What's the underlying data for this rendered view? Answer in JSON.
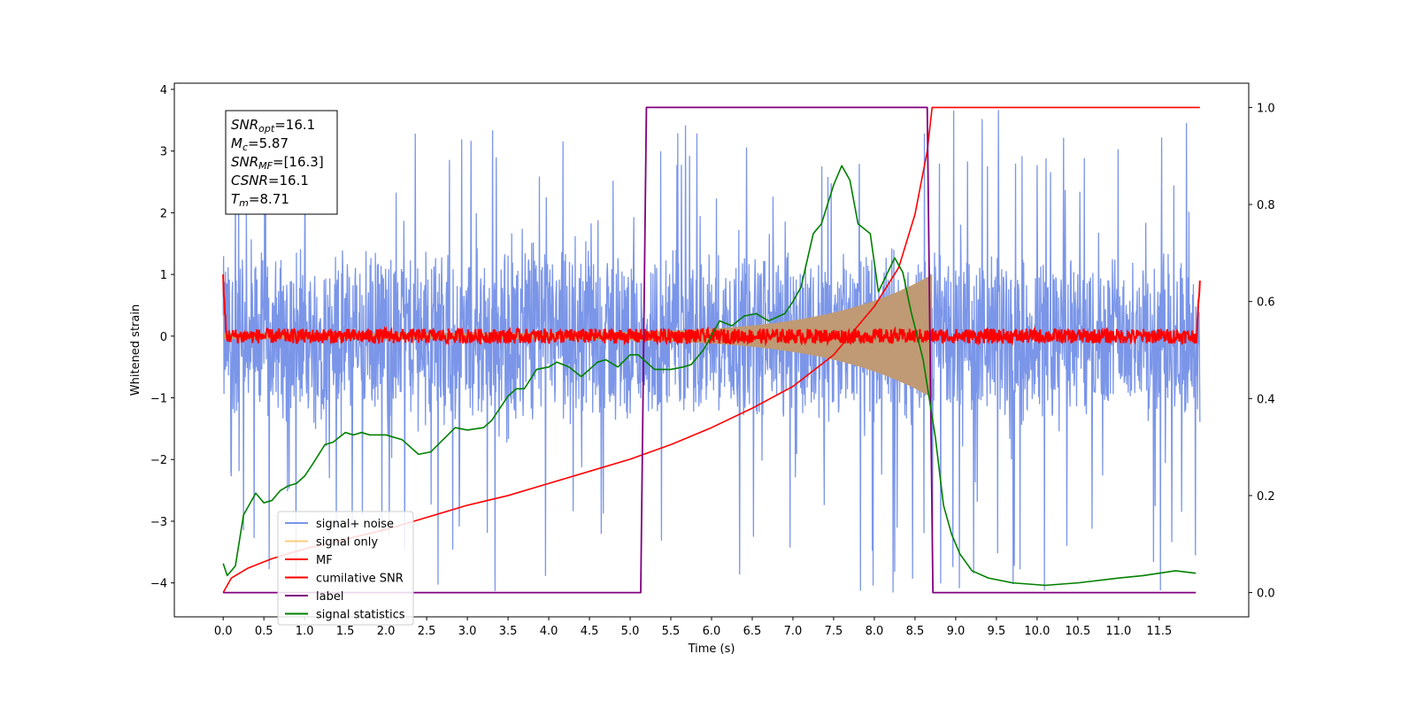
{
  "chart_data": {
    "type": "line",
    "title": "",
    "xlabel": "Time (s)",
    "ylabel": "Whitened strain",
    "ylabel_right": "",
    "xlim": [
      -0.6,
      12.6
    ],
    "ylim": [
      -4.55,
      4.1
    ],
    "ylim_right": [
      -0.05,
      1.05
    ],
    "xticks": [
      0.0,
      0.5,
      1.0,
      1.5,
      2.0,
      2.5,
      3.0,
      3.5,
      4.0,
      4.5,
      5.0,
      5.5,
      6.0,
      6.5,
      7.0,
      7.5,
      8.0,
      8.5,
      9.0,
      9.5,
      10.0,
      10.5,
      11.0,
      11.5
    ],
    "xtick_labels": [
      "0.0",
      "0.5",
      "1.0",
      "1.5",
      "2.0",
      "2.5",
      "3.0",
      "3.5",
      "4.0",
      "4.5",
      "5.0",
      "5.5",
      "6.0",
      "6.5",
      "7.0",
      "7.5",
      "8.0",
      "8.5",
      "9.0",
      "9.5",
      "10.0",
      "10.5",
      "11.0",
      "11.5"
    ],
    "yticks": [
      -4,
      -3,
      -2,
      -1,
      0,
      1,
      2,
      3,
      4
    ],
    "ytick_labels": [
      "−4",
      "−3",
      "−2",
      "−1",
      "0",
      "1",
      "2",
      "3",
      "4"
    ],
    "yticks_right": [
      0.0,
      0.2,
      0.4,
      0.6,
      0.8,
      1.0
    ],
    "ytick_labels_right": [
      "0.0",
      "0.2",
      "0.4",
      "0.6",
      "0.8",
      "1.0"
    ],
    "grid": false,
    "legend_position": "lower-left",
    "annotation": {
      "lines": [
        {
          "sym": "SNR",
          "sub": "opt",
          "value": "=16.1"
        },
        {
          "sym": "M",
          "sub": "c",
          "value": "=5.87"
        },
        {
          "sym": "SNR",
          "sub": "MF",
          "value": "=[16.3]"
        },
        {
          "sym": "CSNR",
          "sub": "",
          "value": "=16.1"
        },
        {
          "sym": "T",
          "sub": "m",
          "value": "=8.71"
        }
      ]
    },
    "series": [
      {
        "name": "signal+ noise",
        "color": "#7b96e8",
        "axis": "left",
        "style": "noise-band",
        "x_range": [
          0.0,
          12.0
        ],
        "band": [
          -1.5,
          1.5
        ],
        "spike_max": 3.7,
        "spike_min": -4.2
      },
      {
        "name": "signal only",
        "color": "#fecb7c",
        "fill_color": "#bf9a74",
        "axis": "left",
        "style": "chirp-envelope",
        "x_range": [
          0.0,
          8.71
        ],
        "amplitude_start": 0.05,
        "amplitude_end": 1.0
      },
      {
        "name": "MF",
        "color": "#ff0000",
        "axis": "left",
        "style": "noisy-flat",
        "x_range": [
          0.0,
          12.0
        ],
        "level": 0.0,
        "amplitude": 0.12,
        "edge_value": 1.0
      },
      {
        "name": "cumilative SNR",
        "color": "#ff0000",
        "axis": "right",
        "x": [
          0.0,
          0.1,
          0.3,
          0.6,
          1.0,
          1.5,
          2.0,
          2.5,
          3.0,
          3.5,
          4.0,
          4.5,
          5.0,
          5.5,
          6.0,
          6.5,
          7.0,
          7.5,
          8.0,
          8.3,
          8.5,
          8.65,
          8.71,
          12.0
        ],
        "y": [
          0.0,
          0.03,
          0.05,
          0.07,
          0.09,
          0.11,
          0.13,
          0.155,
          0.18,
          0.2,
          0.225,
          0.25,
          0.275,
          0.305,
          0.34,
          0.38,
          0.425,
          0.49,
          0.59,
          0.67,
          0.78,
          0.91,
          1.0,
          1.0
        ]
      },
      {
        "name": "label",
        "color": "#800080",
        "axis": "right",
        "x": [
          0.0,
          5.13,
          5.2,
          8.65,
          8.72,
          11.95
        ],
        "y": [
          0.0,
          0.0,
          1.0,
          1.0,
          0.0,
          0.0
        ]
      },
      {
        "name": "signal statistics",
        "color": "#008000",
        "axis": "right",
        "x": [
          0.0,
          0.05,
          0.15,
          0.25,
          0.4,
          0.5,
          0.6,
          0.7,
          0.8,
          0.9,
          1.0,
          1.1,
          1.25,
          1.35,
          1.5,
          1.6,
          1.7,
          1.8,
          2.0,
          2.2,
          2.4,
          2.55,
          2.7,
          2.85,
          3.0,
          3.2,
          3.3,
          3.5,
          3.6,
          3.7,
          3.85,
          4.0,
          4.1,
          4.25,
          4.4,
          4.6,
          4.7,
          4.85,
          5.0,
          5.1,
          5.3,
          5.5,
          5.65,
          5.75,
          5.9,
          6.1,
          6.25,
          6.4,
          6.55,
          6.7,
          6.9,
          7.0,
          7.1,
          7.25,
          7.35,
          7.5,
          7.6,
          7.7,
          7.8,
          7.95,
          8.05,
          8.25,
          8.35,
          8.45,
          8.6,
          8.75,
          8.85,
          8.95,
          9.05,
          9.2,
          9.4,
          9.7,
          10.1,
          10.5,
          11.0,
          11.3,
          11.5,
          11.7,
          11.95
        ],
        "y": [
          0.06,
          0.035,
          0.055,
          0.16,
          0.205,
          0.185,
          0.19,
          0.21,
          0.22,
          0.225,
          0.24,
          0.265,
          0.305,
          0.31,
          0.33,
          0.325,
          0.33,
          0.325,
          0.325,
          0.315,
          0.285,
          0.29,
          0.315,
          0.34,
          0.335,
          0.34,
          0.355,
          0.405,
          0.42,
          0.42,
          0.46,
          0.465,
          0.475,
          0.465,
          0.445,
          0.475,
          0.48,
          0.465,
          0.49,
          0.49,
          0.46,
          0.46,
          0.465,
          0.47,
          0.5,
          0.56,
          0.55,
          0.57,
          0.575,
          0.56,
          0.575,
          0.6,
          0.63,
          0.74,
          0.76,
          0.84,
          0.88,
          0.85,
          0.76,
          0.74,
          0.62,
          0.69,
          0.66,
          0.58,
          0.48,
          0.32,
          0.18,
          0.12,
          0.08,
          0.045,
          0.03,
          0.02,
          0.015,
          0.02,
          0.03,
          0.035,
          0.04,
          0.045,
          0.04
        ]
      }
    ]
  }
}
